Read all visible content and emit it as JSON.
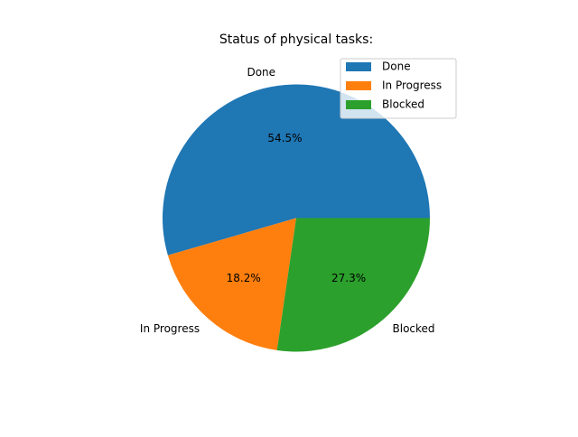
{
  "chart_data": {
    "type": "pie",
    "title": "Status of physical tasks:",
    "labels": [
      "Done",
      "In Progress",
      "Blocked"
    ],
    "values": [
      54.5,
      18.2,
      27.3
    ],
    "value_labels": [
      "54.5%",
      "18.2%",
      "27.3%"
    ],
    "colors": [
      "#1f77b4",
      "#ff7f0e",
      "#2ca02c"
    ],
    "start_angle_deg": 0,
    "direction": "counterclockwise",
    "legend": {
      "placement": "top-right",
      "entries": [
        "Done",
        "In Progress",
        "Blocked"
      ]
    }
  }
}
